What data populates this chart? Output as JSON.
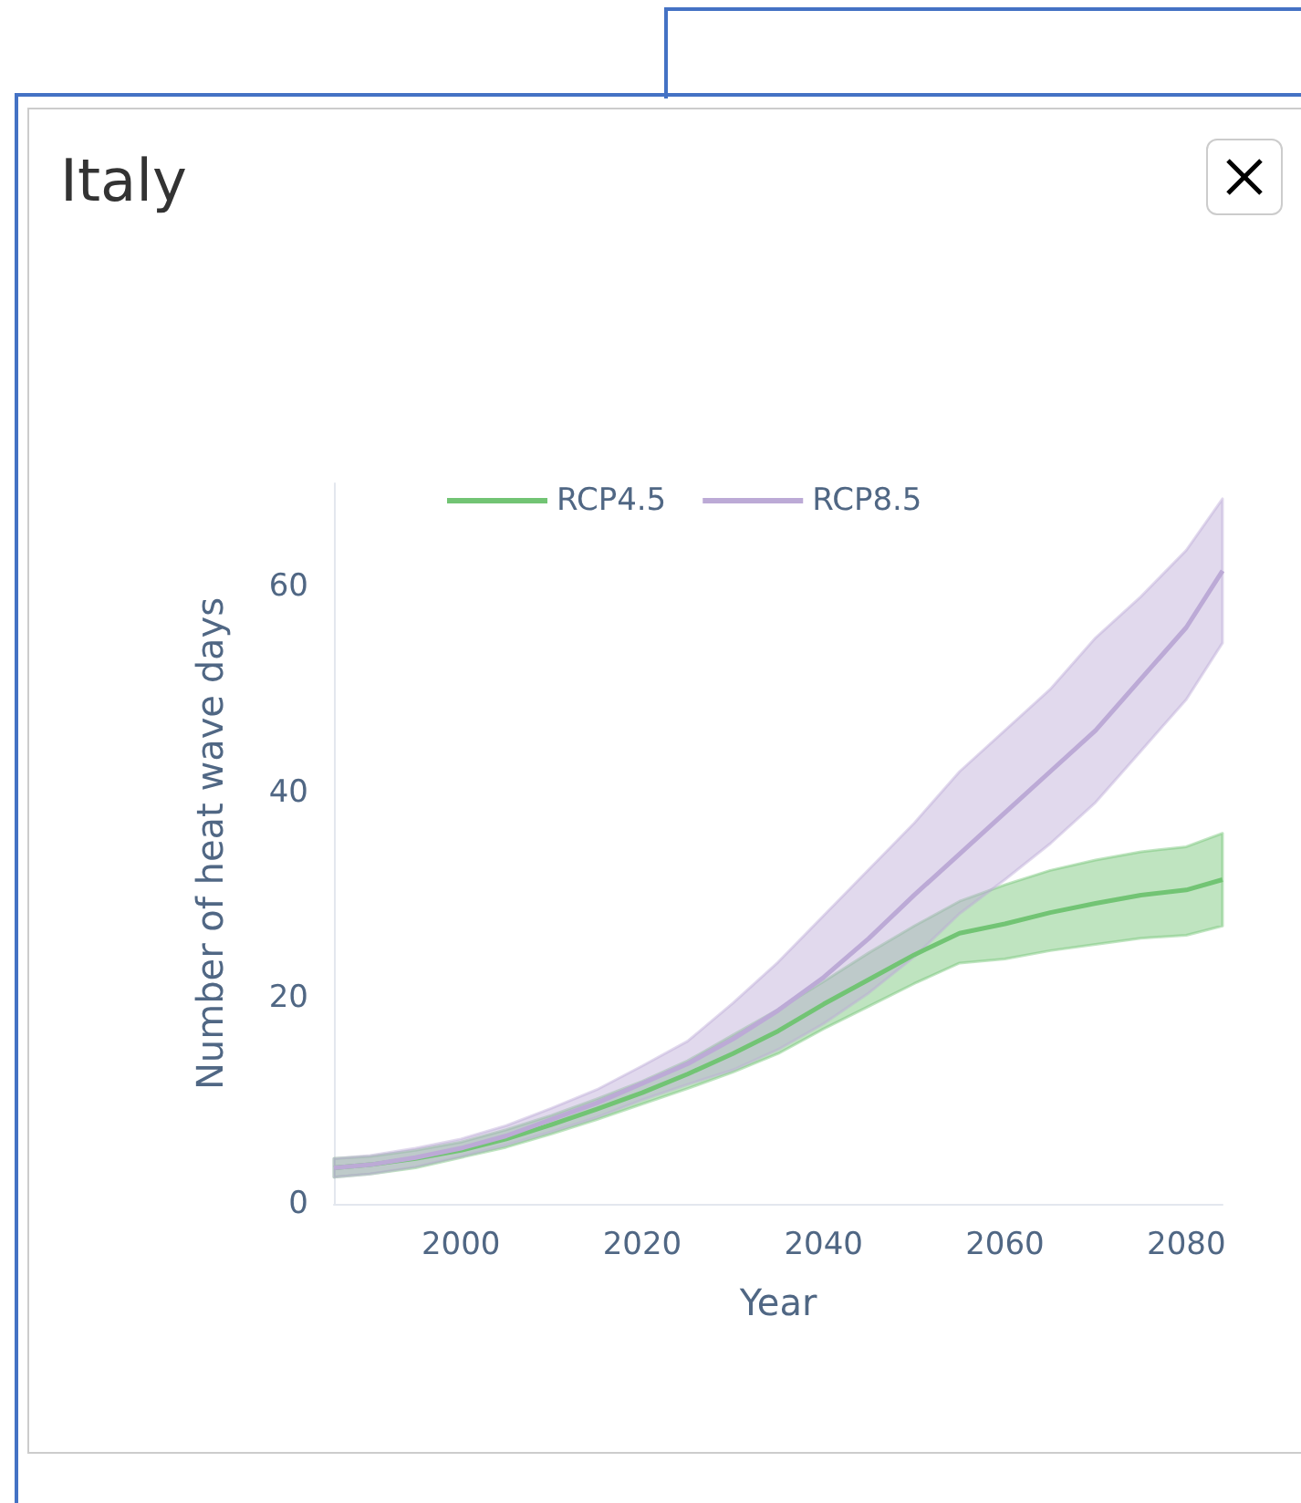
{
  "chart_data": {
    "type": "line",
    "title": "Italy",
    "xlabel": "Year",
    "ylabel": "Number of heat wave days",
    "x": [
      1986,
      1990,
      1995,
      2000,
      2005,
      2010,
      2015,
      2020,
      2025,
      2030,
      2035,
      2040,
      2045,
      2050,
      2055,
      2060,
      2065,
      2070,
      2075,
      2080,
      2084
    ],
    "series": [
      {
        "name": "RCP4.5",
        "color": "#72c474",
        "values": [
          3.5,
          3.8,
          4.4,
          5.2,
          6.3,
          7.7,
          9.2,
          10.8,
          12.6,
          14.6,
          16.8,
          19.4,
          21.8,
          24.2,
          26.3,
          27.2,
          28.3,
          29.2,
          30,
          30.5,
          31.5
        ],
        "lower": [
          2.6,
          2.9,
          3.5,
          4.5,
          5.5,
          6.8,
          8.2,
          9.7,
          11.2,
          12.8,
          14.6,
          17,
          19.2,
          21.4,
          23.4,
          23.8,
          24.6,
          25.2,
          25.8,
          26.1,
          27
        ],
        "upper": [
          4.4,
          4.6,
          5.2,
          6,
          7.2,
          8.6,
          10.2,
          11.9,
          13.9,
          16.4,
          18.9,
          21.6,
          24.4,
          27,
          29.4,
          31,
          32.4,
          33.4,
          34.2,
          34.7,
          36
        ]
      },
      {
        "name": "RCP8.5",
        "color": "#bcaad6",
        "values": [
          3.5,
          3.8,
          4.5,
          5.4,
          6.6,
          8.2,
          9.8,
          11.7,
          13.6,
          16,
          18.8,
          22,
          25.8,
          30,
          34,
          38,
          42,
          46,
          51,
          56,
          61.5
        ],
        "lower": [
          2.6,
          2.9,
          3.6,
          4.6,
          5.7,
          7,
          8.4,
          10.1,
          11.6,
          13,
          15,
          17.5,
          20.5,
          24,
          28.2,
          31.5,
          35,
          39,
          44,
          49,
          54.5
        ],
        "upper": [
          4.4,
          4.7,
          5.4,
          6.3,
          7.6,
          9.3,
          11.1,
          13.4,
          15.8,
          19.5,
          23.5,
          28,
          32.5,
          37,
          42,
          46,
          50,
          55,
          59,
          63.5,
          68.5
        ]
      }
    ],
    "xlim": [
      1986,
      2084
    ],
    "xticks": [
      2000,
      2020,
      2040,
      2060,
      2080
    ],
    "ylim": [
      0,
      70
    ],
    "yticks": [
      0,
      20,
      40,
      60
    ],
    "grid": false,
    "legend": "top",
    "marker": "none",
    "line_style": "solid"
  }
}
